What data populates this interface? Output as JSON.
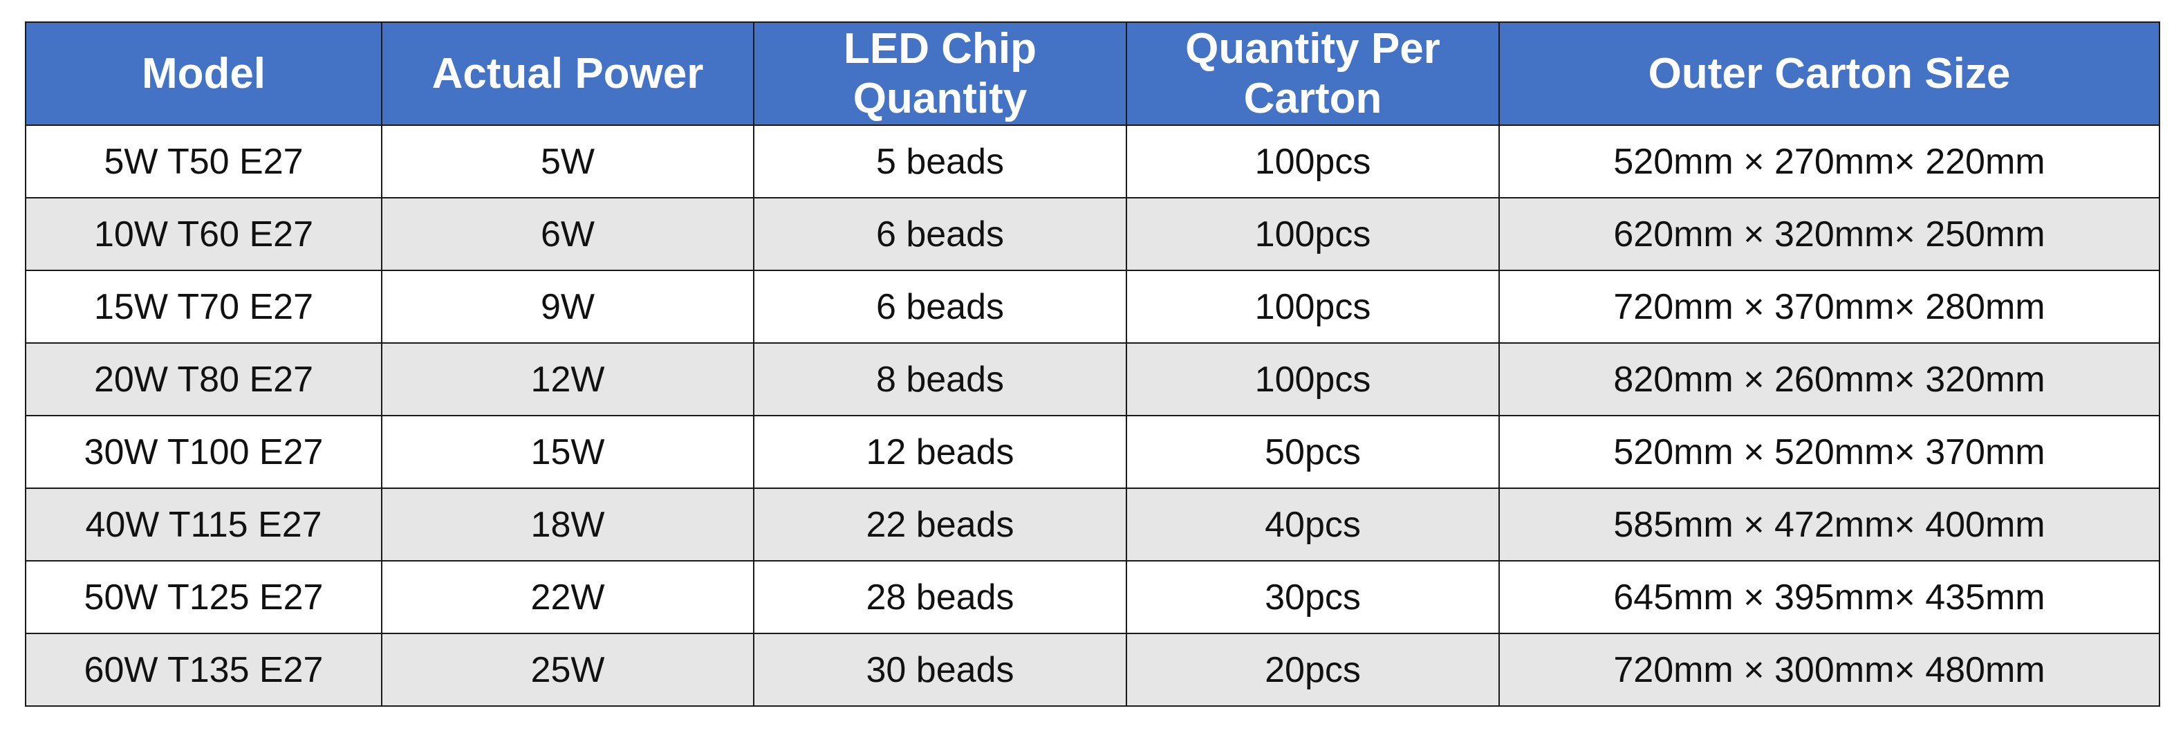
{
  "colors": {
    "header_background": "#4472c4",
    "header_text": "#ffffff",
    "row_alternate": "#e6e6e6",
    "row_base": "#ffffff",
    "border": "#1a1a1a"
  },
  "table": {
    "headers": [
      "Model",
      "Actual Power",
      "LED Chip Quantity",
      "Quantity Per Carton",
      "Outer Carton Size"
    ],
    "rows": [
      [
        "5W T50 E27",
        "5W",
        "5 beads",
        "100pcs",
        "520mm × 270mm× 220mm"
      ],
      [
        "10W T60 E27",
        "6W",
        "6 beads",
        "100pcs",
        "620mm × 320mm× 250mm"
      ],
      [
        "15W T70 E27",
        "9W",
        "6 beads",
        "100pcs",
        "720mm × 370mm× 280mm"
      ],
      [
        "20W T80 E27",
        "12W",
        "8 beads",
        "100pcs",
        "820mm × 260mm× 320mm"
      ],
      [
        "30W T100 E27",
        "15W",
        "12 beads",
        "50pcs",
        "520mm × 520mm× 370mm"
      ],
      [
        "40W T115 E27",
        "18W",
        "22 beads",
        "40pcs",
        "585mm × 472mm× 400mm"
      ],
      [
        "50W T125 E27",
        "22W",
        "28 beads",
        "30pcs",
        "645mm × 395mm× 435mm"
      ],
      [
        "60W T135 E27",
        "25W",
        "30 beads",
        "20pcs",
        "720mm × 300mm× 480mm"
      ]
    ]
  }
}
